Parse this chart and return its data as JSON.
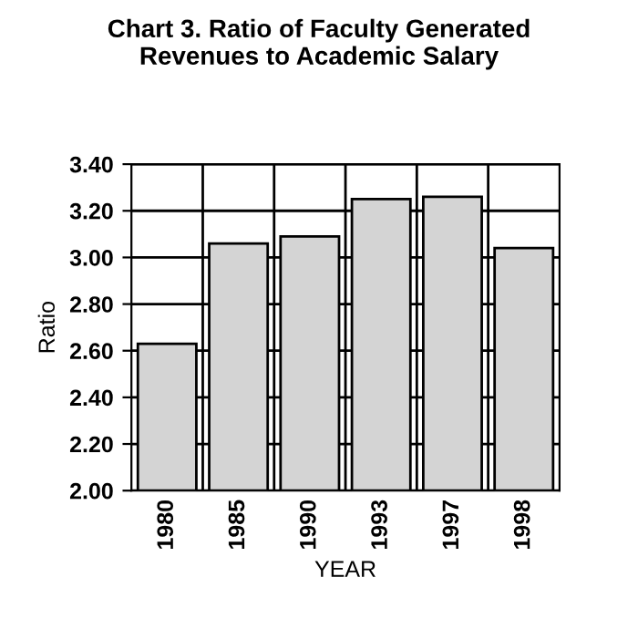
{
  "chart_data": {
    "type": "bar",
    "title": "Chart 3. Ratio of Faculty Generated\nRevenues to Academic Salary",
    "xlabel": "YEAR",
    "ylabel": "Ratio",
    "categories": [
      "1980",
      "1985",
      "1990",
      "1993",
      "1997",
      "1998"
    ],
    "values": [
      2.63,
      3.06,
      3.09,
      3.25,
      3.26,
      3.04
    ],
    "color": "#d4d4d4",
    "ylim": [
      2.0,
      3.4
    ],
    "yticks": [
      {
        "value": 2.0,
        "label": "2.00"
      },
      {
        "value": 2.2,
        "label": "2.20"
      },
      {
        "value": 2.4,
        "label": "2.40"
      },
      {
        "value": 2.6,
        "label": "2.60"
      },
      {
        "value": 2.8,
        "label": "2.80"
      },
      {
        "value": 3.0,
        "label": "3.00"
      },
      {
        "value": 3.2,
        "label": "3.20"
      },
      {
        "value": 3.4,
        "label": "3.40"
      }
    ],
    "grid": true
  }
}
